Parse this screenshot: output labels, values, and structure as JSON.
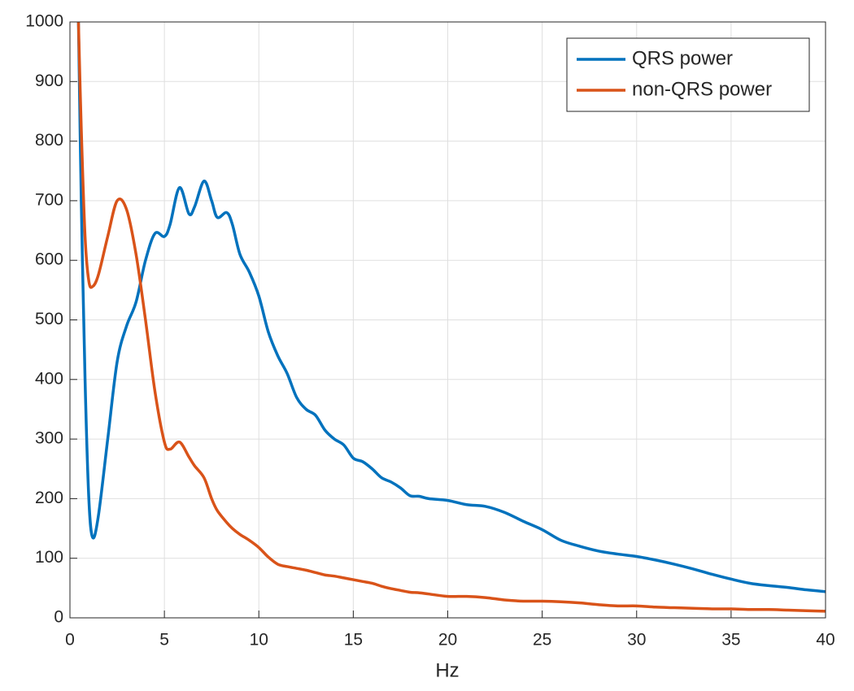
{
  "chart_data": {
    "type": "line",
    "xlabel": "Hz",
    "xlim": [
      0,
      40
    ],
    "xticks": [
      0,
      5,
      10,
      15,
      20,
      25,
      30,
      35,
      40
    ],
    "ylim": [
      0,
      1000
    ],
    "yticks": [
      0,
      100,
      200,
      300,
      400,
      500,
      600,
      700,
      800,
      900,
      1000
    ],
    "grid": true,
    "legend": "northeast",
    "x": [
      0.45,
      0.6,
      0.8,
      1.0,
      1.2,
      1.5,
      2,
      2.5,
      3,
      3.5,
      4,
      4.5,
      5,
      5.3,
      5.8,
      6.3,
      6.6,
      7.1,
      7.5,
      7.8,
      8.3,
      8.6,
      9,
      9.5,
      10,
      10.5,
      11,
      11.5,
      12,
      12.5,
      13,
      13.5,
      14,
      14.5,
      15,
      15.5,
      16,
      16.5,
      17,
      17.5,
      18,
      18.5,
      19,
      20,
      21,
      22,
      23,
      24,
      25,
      26,
      27,
      28,
      29,
      30,
      31,
      32,
      33,
      34,
      35,
      36,
      37,
      38,
      39,
      40
    ],
    "series": [
      {
        "name": "QRS power",
        "color": "#0072BD",
        "values": [
          1000,
          700,
          400,
          200,
          135,
          170,
          300,
          430,
          490,
          530,
          600,
          645,
          640,
          660,
          722,
          678,
          690,
          733,
          700,
          672,
          680,
          660,
          610,
          580,
          540,
          480,
          440,
          410,
          370,
          350,
          340,
          315,
          300,
          290,
          268,
          262,
          250,
          235,
          228,
          218,
          205,
          204,
          200,
          197,
          190,
          187,
          177,
          162,
          148,
          130,
          120,
          112,
          107,
          103,
          97,
          90,
          82,
          73,
          65,
          58,
          54,
          51,
          47,
          44
        ]
      },
      {
        "name": "non-QRS power",
        "color": "#D95319",
        "values": [
          1000,
          820,
          640,
          565,
          556,
          575,
          640,
          700,
          685,
          610,
          500,
          380,
          295,
          283,
          295,
          270,
          255,
          235,
          200,
          180,
          160,
          150,
          140,
          130,
          118,
          102,
          90,
          86,
          83,
          80,
          76,
          72,
          70,
          67,
          64,
          61,
          58,
          53,
          49,
          46,
          43,
          42,
          40,
          36,
          36,
          34,
          30,
          28,
          28,
          27,
          25,
          22,
          20,
          20,
          18,
          17,
          16,
          15,
          15,
          14,
          14,
          13,
          12,
          11
        ]
      }
    ]
  }
}
